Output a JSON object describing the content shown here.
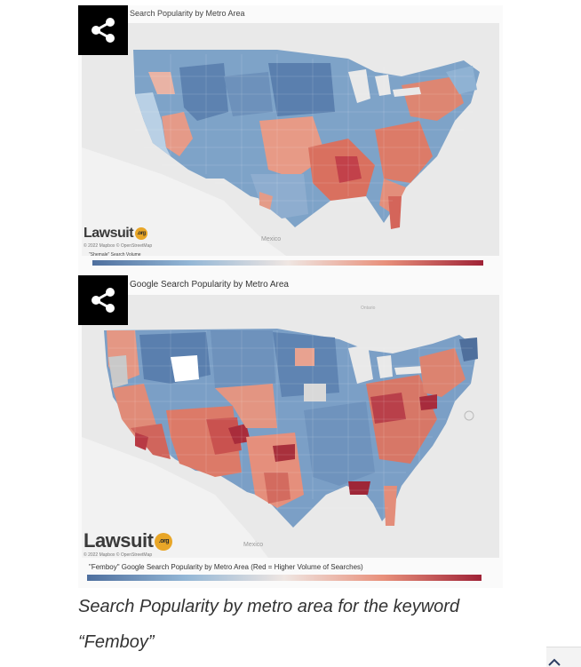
{
  "figures": [
    {
      "title": "Search Popularity by Metro Area",
      "logo_text": "Lawsuit",
      "logo_badge": ".org",
      "map_credit": "© 2022 Mapbox © OpenStreetMap",
      "country_label": "Mexico",
      "legend_label": "\"Shemale\" Search Volume",
      "legend_colors": [
        "#4e6f9e",
        "#94b7d6",
        "#efe6e2",
        "#e8907b",
        "#9f2236"
      ],
      "share_icon": "share-icon"
    },
    {
      "title": "Google Search Popularity by Metro Area",
      "logo_text": "Lawsuit",
      "logo_badge": ".org",
      "map_credit": "© 2022 Mapbox © OpenStreetMap",
      "country_label": "Mexico",
      "region_label": "Ontario",
      "legend_label": "\"Femboy\" Google Search Popularity by Metro Area (Red = Higher Volume of Searches)",
      "legend_colors": [
        "#4e6f9e",
        "#94b7d6",
        "#efe6e2",
        "#e8907b",
        "#9f2236"
      ],
      "share_icon": "share-icon"
    }
  ],
  "caption": {
    "line1": "Search Popularity by metro area for the keyword",
    "line2": "“Femboy”"
  }
}
